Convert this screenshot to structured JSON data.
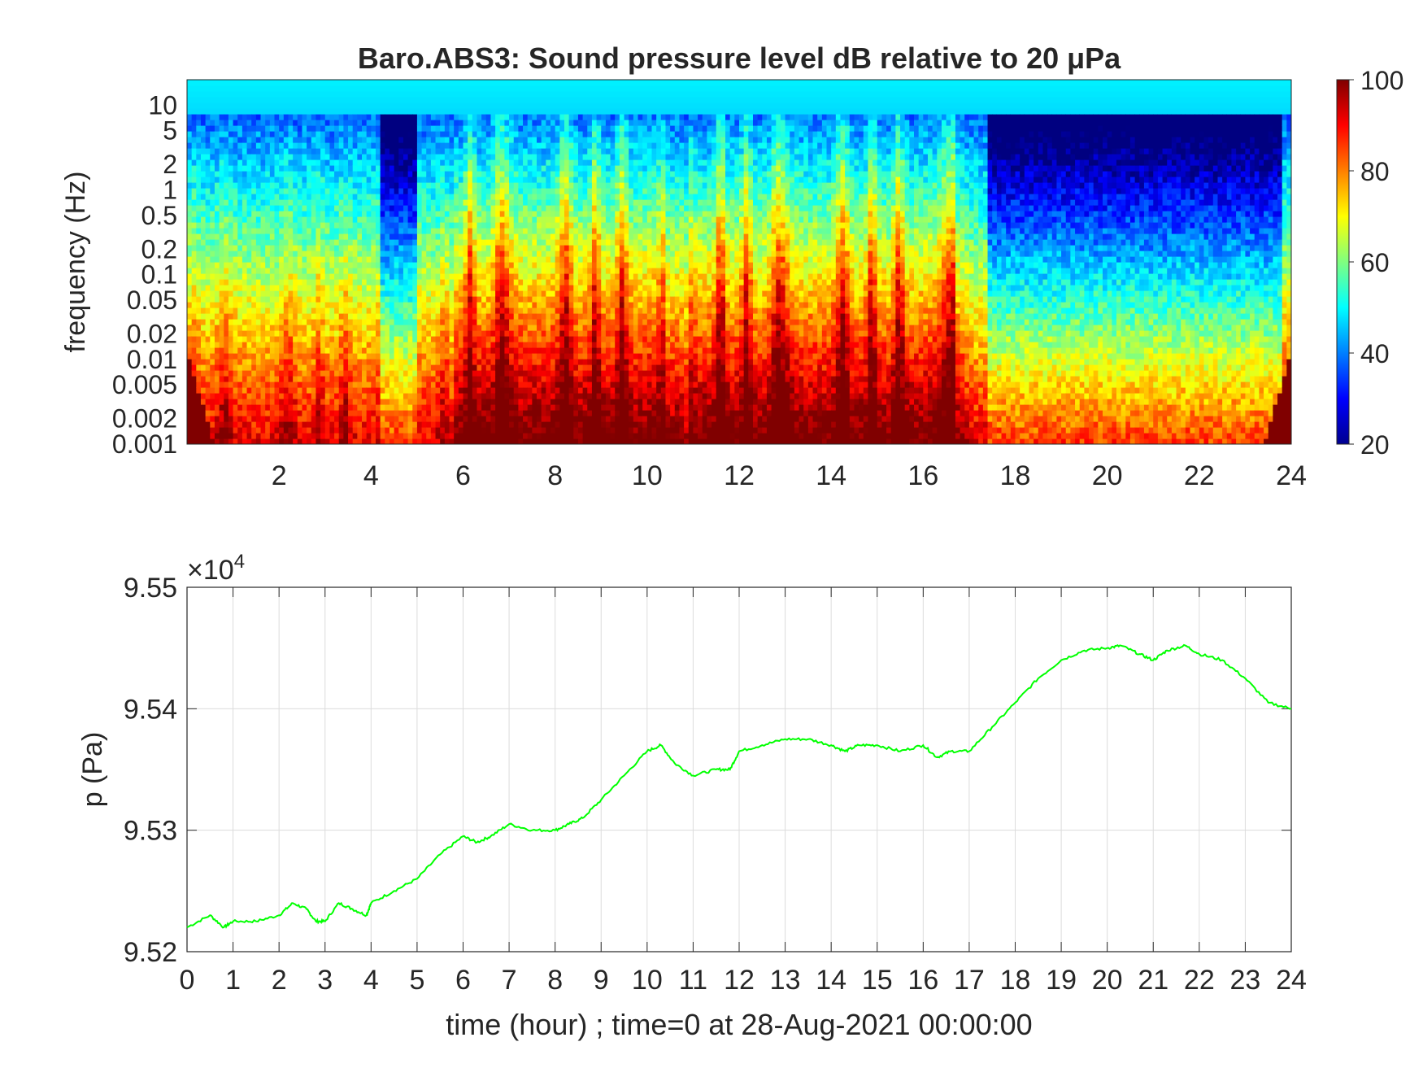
{
  "figure_title": "Baro.ABS3: Sound pressure level dB relative to 20 μPa",
  "colors": {
    "line": "#00ff00",
    "axes": "#262626",
    "grid": "#dcdcdc"
  },
  "chart_data": [
    {
      "type": "heatmap",
      "title": "Baro.ABS3: Sound pressure level dB relative to 20 μPa",
      "ylabel": "frequency (Hz)",
      "xlabel": "",
      "xlim": [
        0,
        24
      ],
      "x_ticks": [
        "2",
        "4",
        "6",
        "8",
        "10",
        "12",
        "14",
        "16",
        "18",
        "20",
        "22",
        "24"
      ],
      "y_scale": "log",
      "ylim": [
        0.001,
        20
      ],
      "y_ticks": [
        "10",
        "5",
        "2",
        "1",
        "0.5",
        "0.2",
        "0.1",
        "0.05",
        "0.02",
        "0.01",
        "0.005",
        "0.002",
        "0.001"
      ],
      "colormap": "jet",
      "colorbar": {
        "range": [
          20,
          100
        ],
        "ticks": [
          "100",
          "80",
          "60",
          "40",
          "20"
        ],
        "placement": "right"
      },
      "active_periods_hours": [
        [
          5.8,
          10.4
        ],
        [
          10.9,
          16.7
        ]
      ],
      "quiet_periods_hours": [
        [
          4.2,
          5.0
        ],
        [
          17.4,
          23.8
        ]
      ]
    },
    {
      "type": "line",
      "ylabel": "p (Pa)",
      "xlabel": "time (hour) ; time=0 at 28-Aug-2021 00:00:00",
      "xlim": [
        0,
        24
      ],
      "ylim": [
        95200,
        95500
      ],
      "x_ticks": [
        "0",
        "1",
        "2",
        "3",
        "4",
        "5",
        "6",
        "7",
        "8",
        "9",
        "10",
        "11",
        "12",
        "13",
        "14",
        "15",
        "16",
        "17",
        "18",
        "19",
        "20",
        "21",
        "22",
        "23",
        "24"
      ],
      "y_ticks": [
        "9.55",
        "9.54",
        "9.53",
        "9.52"
      ],
      "y_exponent": "×10",
      "y_exponent_power": "4",
      "grid": true,
      "series": [
        {
          "x": [
            0,
            0.5,
            0.8,
            1,
            1.5,
            2,
            2.3,
            2.6,
            2.8,
            3,
            3.3,
            3.6,
            3.9,
            4,
            4.5,
            5,
            5.5,
            6,
            6.3,
            6.6,
            7,
            7.5,
            8,
            8.3,
            8.6,
            9,
            9.5,
            10,
            10.3,
            10.6,
            11,
            11.5,
            11.8,
            12,
            12.5,
            13,
            13.5,
            14,
            14.3,
            14.6,
            15,
            15.5,
            16,
            16.3,
            16.6,
            17,
            17.5,
            18,
            18.5,
            19,
            19.5,
            20,
            20.3,
            20.7,
            21,
            21.3,
            21.7,
            22,
            22.5,
            23,
            23.5,
            24
          ],
          "values": [
            95220,
            95230,
            95220,
            95225,
            95225,
            95230,
            95240,
            95235,
            95225,
            95225,
            95240,
            95235,
            95230,
            95240,
            95250,
            95260,
            95280,
            95295,
            95290,
            95295,
            95305,
            95300,
            95300,
            95305,
            95310,
            95325,
            95345,
            95365,
            95370,
            95355,
            95345,
            95350,
            95350,
            95365,
            95370,
            95375,
            95375,
            95370,
            95365,
            95370,
            95370,
            95365,
            95370,
            95360,
            95365,
            95365,
            95385,
            95405,
            95425,
            95440,
            95448,
            95450,
            95452,
            95445,
            95440,
            95448,
            95452,
            95445,
            95440,
            95425,
            95405,
            95400
          ]
        }
      ]
    }
  ]
}
